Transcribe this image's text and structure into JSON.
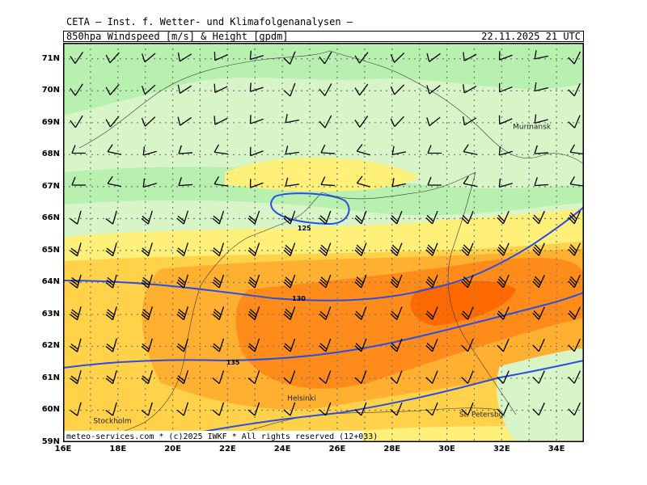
{
  "header": {
    "title": "CETA — Inst. f. Wetter- und Klimafolgenanalysen —",
    "subtitle": "850hpa_Windspeed_[m/s]_&_Height_[gpdm]",
    "datetime": "22.11.2025 21 UTC"
  },
  "map": {
    "extent": {
      "lon_min": 16,
      "lon_max": 35,
      "lat_min": 59,
      "lat_max": 71.5
    },
    "lat_labels": [
      "71N",
      "70N",
      "69N",
      "68N",
      "67N",
      "66N",
      "65N",
      "64N",
      "63N",
      "62N",
      "61N",
      "60N",
      "59N"
    ],
    "lon_labels": [
      "16E",
      "18E",
      "20E",
      "22E",
      "24E",
      "26E",
      "28E",
      "30E",
      "32E",
      "34E"
    ],
    "contours": [
      {
        "label": "125",
        "label_lon": 24.8,
        "label_lat": 65.7
      },
      {
        "label": "130",
        "label_lon": 24.6,
        "label_lat": 63.5
      },
      {
        "label": "135",
        "label_lon": 22.2,
        "label_lat": 61.5
      }
    ],
    "places": [
      {
        "name": "Murmansk",
        "lon": 33.1,
        "lat": 68.8
      },
      {
        "name": "Helsinki",
        "lon": 24.7,
        "lat": 60.3
      },
      {
        "name": "Stockholm",
        "lon": 17.8,
        "lat": 59.6
      },
      {
        "name": "St. Petersbg.",
        "lon": 31.3,
        "lat": 59.8
      }
    ],
    "wind_colors": {
      "calm": "#b8f0b0",
      "light": "#d8f5c8",
      "moderate": "#fff07a",
      "fresh": "#ffd24a",
      "strong": "#ffb030",
      "very_strong": "#ff8c1a",
      "max": "#ff6a00"
    },
    "contour_color": "#2a4fe0"
  },
  "footer": {
    "credit": "meteo-services.com * (c)2025 IWKF * All rights reserved (12+033)"
  }
}
